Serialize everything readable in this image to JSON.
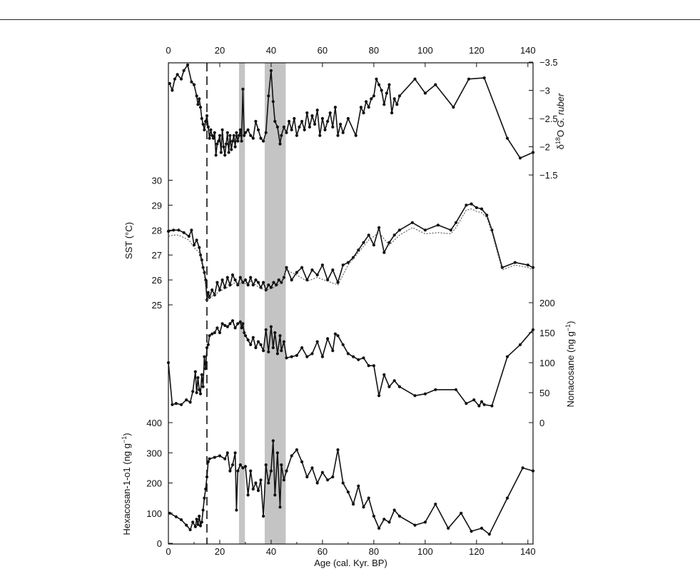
{
  "chart_data": [
    {
      "panel": "d18O",
      "type": "line",
      "ylabel": "δ18O G. ruber",
      "ylabel_parts": {
        "pre": "δ",
        "sup": "18",
        "mid": "O ",
        "italic": "G. ruber"
      },
      "y_reversed": true,
      "ylim": [
        -1.4,
        -3.5
      ],
      "yticks": [
        -3.5,
        -3,
        -2.5,
        -2,
        -1.5
      ],
      "ytick_labels": [
        "−3.5",
        "−3",
        "−2.5",
        "−2",
        "−1.5"
      ],
      "series": [
        {
          "x": [
            0.5,
            1.5,
            2.5,
            3.5,
            5,
            6,
            7.5,
            9,
            10,
            11,
            11.5,
            12,
            12.5,
            13,
            13.5,
            14,
            14.5,
            15,
            15.5,
            16,
            16.5,
            17,
            17.5,
            18,
            18.5,
            19,
            19.5,
            20,
            20.5,
            21,
            21.5,
            22,
            22.5,
            23,
            23.5,
            24,
            24.5,
            25,
            25.5,
            26,
            26.5,
            27,
            27.5,
            28,
            28.5,
            29,
            29.5,
            30,
            31,
            32,
            33,
            34,
            35,
            36,
            37,
            38,
            39,
            40,
            40.8,
            41.5,
            42.5,
            43.5,
            44,
            45,
            46,
            47,
            48,
            49,
            50,
            51,
            52,
            53,
            54,
            55,
            56,
            57,
            58,
            59,
            60,
            61,
            62,
            63,
            64,
            65,
            66,
            67,
            68,
            70,
            73,
            75,
            76,
            77,
            78,
            79,
            80,
            81,
            82,
            83,
            84,
            85,
            86,
            87,
            88,
            89,
            90,
            96,
            100,
            104,
            111,
            117,
            123,
            132,
            137,
            142
          ],
          "y": [
            -3.12,
            -3.0,
            -3.2,
            -3.28,
            -3.2,
            -3.35,
            -3.45,
            -3.15,
            -3.1,
            -2.9,
            -2.75,
            -2.85,
            -2.7,
            -2.5,
            -2.4,
            -2.3,
            -2.45,
            -2.55,
            -2.35,
            -2.15,
            -2.3,
            -2.2,
            -2.15,
            -2.25,
            -1.85,
            -2.05,
            -2.1,
            -2.2,
            -1.9,
            -2.3,
            -2.0,
            -1.85,
            -2.05,
            -2.25,
            -1.9,
            -2.2,
            -1.95,
            -2.1,
            -2.2,
            -2.0,
            -2.25,
            -2.1,
            -2.2,
            -2.3,
            -2.1,
            -3.02,
            -2.2,
            -2.25,
            -2.3,
            -2.2,
            -2.15,
            -2.45,
            -2.3,
            -2.15,
            -2.1,
            -2.25,
            -2.9,
            -3.35,
            -2.8,
            -2.45,
            -2.35,
            -2.05,
            -2.2,
            -2.35,
            -2.25,
            -2.45,
            -2.3,
            -2.5,
            -2.2,
            -2.35,
            -2.45,
            -2.3,
            -2.6,
            -2.35,
            -2.55,
            -2.4,
            -2.65,
            -2.2,
            -2.5,
            -2.3,
            -2.45,
            -2.6,
            -2.35,
            -2.7,
            -2.2,
            -2.4,
            -2.25,
            -2.5,
            -2.2,
            -2.7,
            -2.6,
            -2.8,
            -2.7,
            -2.85,
            -2.9,
            -3.2,
            -3.1,
            -3.0,
            -2.75,
            -2.95,
            -3.1,
            -2.6,
            -2.85,
            -2.75,
            -2.9,
            -3.2,
            -2.95,
            -3.1,
            -2.7,
            -3.2,
            -3.22,
            -2.15,
            -1.8,
            -1.9
          ]
        }
      ]
    },
    {
      "panel": "SST",
      "type": "line",
      "ylabel": "SST (°C)",
      "ylim": [
        24.8,
        30.3
      ],
      "yticks": [
        25,
        26,
        27,
        28,
        29,
        30
      ],
      "ytick_labels": [
        "25",
        "26",
        "27",
        "28",
        "29",
        "30"
      ],
      "series": [
        {
          "style": "solid",
          "x": [
            0,
            2,
            4,
            6,
            8,
            9,
            10,
            11,
            12,
            12.5,
            13,
            13.5,
            14,
            14.5,
            15,
            15.5,
            16,
            17,
            18,
            19,
            20,
            21,
            22,
            23,
            24,
            25,
            26,
            27,
            28,
            29,
            30,
            31,
            32,
            33,
            34,
            35,
            36,
            37,
            38,
            39,
            40,
            41,
            42,
            43,
            44,
            45,
            46,
            48,
            50,
            52,
            54,
            56,
            58,
            60,
            62,
            64,
            66,
            68,
            70,
            72,
            74,
            76,
            78,
            80,
            82,
            84,
            86,
            88,
            90,
            95,
            100,
            105,
            110,
            112,
            116,
            118,
            120,
            122,
            124,
            126,
            130,
            135,
            140,
            142
          ],
          "y": [
            27.95,
            28.0,
            28.0,
            27.9,
            27.75,
            28.0,
            27.4,
            27.6,
            27.3,
            27.0,
            26.8,
            26.5,
            26.3,
            26.0,
            25.2,
            25.5,
            25.3,
            25.6,
            25.4,
            25.9,
            25.6,
            26.0,
            25.7,
            26.1,
            25.8,
            26.2,
            26.0,
            25.8,
            26.1,
            25.9,
            26.0,
            25.8,
            26.1,
            25.8,
            26.0,
            25.9,
            25.7,
            25.9,
            25.6,
            25.8,
            25.7,
            25.9,
            25.8,
            26.0,
            25.9,
            26.1,
            26.5,
            26.0,
            26.3,
            26.5,
            26.0,
            26.4,
            26.2,
            26.6,
            26.0,
            26.4,
            25.9,
            26.6,
            26.7,
            26.9,
            27.2,
            27.5,
            27.8,
            27.4,
            28.1,
            27.1,
            27.5,
            27.8,
            28.0,
            28.3,
            28.0,
            28.2,
            28.0,
            28.3,
            29.0,
            29.05,
            28.9,
            28.85,
            28.6,
            28.0,
            26.5,
            26.7,
            26.6,
            26.5
          ],
          "name": ""
        },
        {
          "style": "dotted",
          "x": [
            0,
            2,
            4,
            6,
            8,
            10,
            12,
            14,
            15,
            16,
            18,
            20,
            22,
            24,
            26,
            28,
            30,
            32,
            34,
            36,
            38,
            40,
            42,
            44,
            46,
            50,
            54,
            58,
            62,
            66,
            70,
            74,
            78,
            82,
            86,
            90,
            95,
            100,
            105,
            110,
            112,
            116,
            118,
            120,
            122,
            124,
            126,
            130,
            135,
            140,
            142
          ],
          "y": [
            27.75,
            27.8,
            27.8,
            27.7,
            27.6,
            27.3,
            27.1,
            26.2,
            25.15,
            25.3,
            25.4,
            25.55,
            25.65,
            25.75,
            25.9,
            25.85,
            25.85,
            25.95,
            25.8,
            25.65,
            25.6,
            25.65,
            25.75,
            25.9,
            26.4,
            26.2,
            25.95,
            26.1,
            25.95,
            25.8,
            26.6,
            27.1,
            27.6,
            27.9,
            27.4,
            27.8,
            28.1,
            27.85,
            27.9,
            27.85,
            28.1,
            28.8,
            28.85,
            28.75,
            28.7,
            28.5,
            27.9,
            26.4,
            26.6,
            26.5,
            26.4
          ],
          "name": ""
        }
      ]
    },
    {
      "panel": "Nonacosane",
      "type": "line",
      "ylabel": "Nonacosane (ng g−1)",
      "ylabel_parts": {
        "pre": "Nonacosane (ng g",
        "sup": "−1",
        "post": ")"
      },
      "ylim": [
        0,
        200
      ],
      "yticks": [
        0,
        50,
        100,
        150,
        200
      ],
      "ytick_labels": [
        "0",
        "50",
        "100",
        "150",
        "200"
      ],
      "series": [
        {
          "x": [
            0,
            1.5,
            3,
            5,
            7,
            8.5,
            9.5,
            10.5,
            11,
            11.5,
            12,
            12.5,
            13,
            13.5,
            14,
            14.5,
            15,
            15.5,
            16,
            17,
            18,
            19,
            20,
            21,
            22,
            23,
            24,
            25,
            26,
            27,
            28,
            28.5,
            29,
            29.5,
            30,
            31,
            32,
            33,
            34,
            35,
            36,
            37,
            38,
            39,
            40,
            40.8,
            41.5,
            42.5,
            43.5,
            44,
            45,
            46,
            48,
            50,
            52,
            54,
            56,
            58,
            60,
            62,
            64,
            65,
            66,
            68,
            70,
            72,
            74,
            76,
            78,
            80,
            82,
            84,
            86,
            88,
            90,
            96,
            100,
            104,
            112,
            116,
            119,
            121,
            122,
            123,
            126,
            132,
            137,
            142
          ],
          "y": [
            100,
            30,
            32,
            30,
            38,
            34,
            52,
            85,
            50,
            75,
            55,
            48,
            80,
            60,
            110,
            90,
            125,
            130,
            145,
            148,
            150,
            158,
            150,
            165,
            162,
            160,
            165,
            170,
            158,
            165,
            168,
            158,
            165,
            150,
            145,
            138,
            130,
            142,
            125,
            135,
            130,
            120,
            155,
            118,
            160,
            125,
            150,
            115,
            145,
            120,
            135,
            108,
            110,
            112,
            125,
            110,
            115,
            135,
            110,
            140,
            120,
            148,
            145,
            130,
            115,
            110,
            105,
            108,
            95,
            95,
            45,
            80,
            60,
            70,
            60,
            45,
            48,
            55,
            55,
            32,
            38,
            28,
            35,
            30,
            28,
            110,
            130,
            155
          ]
        }
      ]
    },
    {
      "panel": "Hexacosan-1-o1",
      "type": "line",
      "ylabel": "Hexacosan-1-o1 (ng g−1)",
      "ylabel_parts": {
        "pre": "Hexacosan-1-o1 (ng g",
        "sup": "−1",
        "post": ")"
      },
      "ylim": [
        0,
        400
      ],
      "yticks": [
        0,
        100,
        200,
        300,
        400
      ],
      "ytick_labels": [
        "0",
        "100",
        "200",
        "300",
        "400"
      ],
      "series": [
        {
          "x": [
            0.5,
            3,
            5,
            7,
            8.5,
            9.5,
            10.5,
            11,
            11.5,
            12,
            12.5,
            13,
            13.5,
            14,
            14.5,
            15,
            15.5,
            16,
            18,
            20,
            22,
            23,
            24,
            25,
            26,
            26.5,
            27,
            28,
            29,
            30,
            31,
            32,
            33,
            34,
            35,
            36,
            37,
            38,
            39,
            40,
            40.8,
            41.5,
            42.5,
            43.5,
            44,
            45,
            46,
            48,
            50,
            52,
            54,
            56,
            58,
            60,
            62,
            64,
            66,
            68,
            70,
            72,
            74,
            76,
            78,
            80,
            82,
            84,
            86,
            88,
            90,
            96,
            100,
            104,
            109,
            114,
            118,
            122,
            125,
            132,
            138,
            142
          ],
          "y": [
            100,
            88,
            78,
            60,
            45,
            70,
            55,
            80,
            62,
            90,
            58,
            70,
            110,
            150,
            180,
            220,
            270,
            280,
            285,
            290,
            280,
            300,
            240,
            260,
            300,
            110,
            240,
            260,
            250,
            255,
            160,
            240,
            180,
            200,
            175,
            210,
            90,
            260,
            200,
            240,
            340,
            160,
            300,
            120,
            260,
            210,
            240,
            290,
            310,
            270,
            220,
            250,
            200,
            235,
            210,
            220,
            310,
            200,
            170,
            130,
            190,
            120,
            150,
            90,
            50,
            80,
            70,
            110,
            90,
            60,
            70,
            130,
            50,
            100,
            40,
            50,
            30,
            150,
            250,
            240
          ]
        }
      ]
    }
  ],
  "x_axis": {
    "label": "Age (cal. Kyr. BP)",
    "xlim": [
      0,
      142
    ],
    "ticks": [
      0,
      20,
      40,
      60,
      80,
      100,
      120,
      140
    ],
    "tick_labels": [
      "0",
      "20",
      "40",
      "60",
      "80",
      "100",
      "120",
      "140"
    ],
    "top_ticks_mirrored": true
  },
  "annotations": {
    "dashed_line_x": 15,
    "shaded_bands": [
      {
        "x0": 27.5,
        "x1": 29.8
      },
      {
        "x0": 37.5,
        "x1": 45.7
      }
    ]
  },
  "colors": {
    "line": "#111111",
    "band": "#c4c4c4",
    "dotted": "#555555"
  }
}
